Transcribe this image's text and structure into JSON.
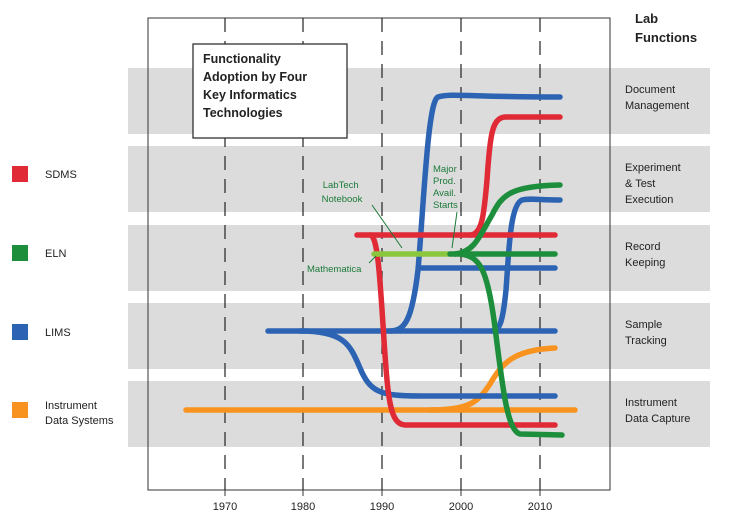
{
  "header": {
    "lab_functions_title": [
      "Lab",
      "Functions"
    ]
  },
  "title_box": {
    "lines": [
      "Functionality",
      "Adoption by Four",
      "Key Informatics",
      "Technologies"
    ]
  },
  "bands": [
    {
      "lines": [
        "Document",
        "Management"
      ]
    },
    {
      "lines": [
        "Experiment",
        "& Test",
        "Execution"
      ]
    },
    {
      "lines": [
        "Record",
        "Keeping"
      ]
    },
    {
      "lines": [
        "Sample",
        "Tracking"
      ]
    },
    {
      "lines": [
        "Instrument",
        "Data Capture"
      ]
    }
  ],
  "legend": [
    {
      "label": [
        "SDMS"
      ],
      "color": "#e02a36"
    },
    {
      "label": [
        "ELN"
      ],
      "color": "#1c8e3c"
    },
    {
      "label": [
        "LIMS"
      ],
      "color": "#2c63b3"
    },
    {
      "label": [
        "Instrument",
        "Data Systems"
      ],
      "color": "#f7931e"
    }
  ],
  "colors": {
    "sdms": "#e02a36",
    "eln": "#1c8e3c",
    "eln_light": "#8cc63f",
    "lims": "#2c63b3",
    "ids": "#f7931e",
    "band": "#dcdcdc",
    "annotation": "#1c7a3a"
  },
  "x_axis": {
    "ticks": [
      "1970",
      "1980",
      "1990",
      "2000",
      "2010"
    ]
  },
  "annotations": {
    "labtech": [
      "LabTech",
      "Notebook"
    ],
    "mathematica": [
      "Mathematica"
    ],
    "major": [
      "Major",
      "Prod.",
      "Avail.",
      "Starts"
    ]
  }
}
